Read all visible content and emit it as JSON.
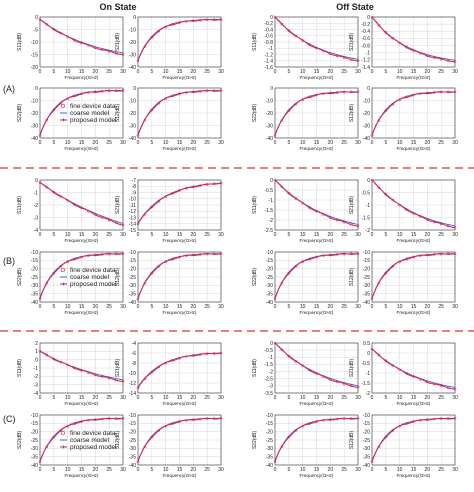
{
  "state_titles": [
    "On State",
    "Off State"
  ],
  "group_labels": [
    "(A)",
    "(B)",
    "(C)"
  ],
  "colors": {
    "fine": "#e8203a",
    "coarse": "#3a66d8",
    "proposed": "#c0247a",
    "divider": "#d83030",
    "grid": "#cccccc"
  },
  "chart_data": [
    {
      "type": "line",
      "group": "A",
      "state": "on",
      "param": "S11",
      "ylabel": "S11(dB)",
      "xlabel": "Frequency(GHz)",
      "xlim": [
        0,
        30
      ],
      "ylim": [
        -20,
        0
      ],
      "xticks": [
        0,
        5,
        10,
        15,
        20,
        25,
        30
      ],
      "yticks": [
        0,
        -5,
        -10,
        -15,
        -20
      ],
      "shape": "dec",
      "y0": -1,
      "y1": -15,
      "k": 1.4,
      "series": [
        {
          "name": "fine device data"
        },
        {
          "name": "coarse model"
        },
        {
          "name": "proposed model"
        }
      ]
    },
    {
      "type": "line",
      "group": "A",
      "state": "on",
      "param": "S21",
      "ylabel": "S21(dB)",
      "xlabel": "Frequency(GHz)",
      "xlim": [
        0,
        30
      ],
      "ylim": [
        -40,
        0
      ],
      "xticks": [
        0,
        5,
        10,
        15,
        20,
        25,
        30
      ],
      "yticks": [
        0,
        -10,
        -20,
        -30,
        -40
      ],
      "shape": "rise",
      "y0": -35,
      "y1": -2,
      "k": 5
    },
    {
      "type": "line",
      "group": "A",
      "state": "off",
      "param": "S11",
      "ylabel": "S11(dB)",
      "xlabel": "Frequency(GHz)",
      "xlim": [
        0,
        30
      ],
      "ylim": [
        -1.6,
        0
      ],
      "xticks": [
        0,
        5,
        10,
        15,
        20,
        25,
        30
      ],
      "yticks": [
        0,
        -0.2,
        -0.4,
        -0.6,
        -0.8,
        -1.0,
        -1.2,
        -1.4,
        -1.6
      ],
      "shape": "dec",
      "y0": 0,
      "y1": -1.4,
      "k": 1.8
    },
    {
      "type": "line",
      "group": "A",
      "state": "off",
      "param": "S21",
      "ylabel": "S21(dB)",
      "xlabel": "Frequency(GHz)",
      "xlim": [
        0,
        30
      ],
      "ylim": [
        -1.4,
        0
      ],
      "xticks": [
        0,
        5,
        10,
        15,
        20,
        25,
        30
      ],
      "yticks": [
        0,
        -0.2,
        -0.4,
        -0.6,
        -0.8,
        -1.0,
        -1.2,
        -1.4
      ],
      "shape": "dec",
      "y0": 0,
      "y1": -1.25,
      "k": 2.2
    },
    {
      "type": "line",
      "group": "A",
      "state": "on",
      "param": "S22",
      "ylabel": "S22(dB)",
      "xlabel": "Frequency(GHz)",
      "xlim": [
        0,
        30
      ],
      "ylim": [
        -40,
        0
      ],
      "xticks": [
        0,
        5,
        10,
        15,
        20,
        25,
        30
      ],
      "yticks": [
        0,
        -10,
        -20,
        -30,
        -40
      ],
      "shape": "rise",
      "y0": -38,
      "y1": -2,
      "k": 5,
      "legend": true
    },
    {
      "type": "line",
      "group": "A",
      "state": "on",
      "param": "S12",
      "ylabel": "S12(dB)",
      "xlabel": "Frequency(GHz)",
      "xlim": [
        0,
        30
      ],
      "ylim": [
        -40,
        0
      ],
      "xticks": [
        0,
        5,
        10,
        15,
        20,
        25,
        30
      ],
      "yticks": [
        0,
        -10,
        -20,
        -30,
        -40
      ],
      "shape": "rise",
      "y0": -38,
      "y1": -2,
      "k": 5
    },
    {
      "type": "line",
      "group": "A",
      "state": "off",
      "param": "S22",
      "ylabel": "S22(dB)",
      "xlabel": "Frequency(GHz)",
      "xlim": [
        0,
        30
      ],
      "ylim": [
        -40,
        0
      ],
      "xticks": [
        0,
        5,
        10,
        15,
        20,
        25,
        30
      ],
      "yticks": [
        0,
        -10,
        -20,
        -30,
        -40
      ],
      "shape": "rise",
      "y0": -38,
      "y1": -3,
      "k": 5
    },
    {
      "type": "line",
      "group": "A",
      "state": "off",
      "param": "S12",
      "ylabel": "S12(dB)",
      "xlabel": "Frequency(GHz)",
      "xlim": [
        0,
        30
      ],
      "ylim": [
        -40,
        0
      ],
      "xticks": [
        0,
        5,
        10,
        15,
        20,
        25,
        30
      ],
      "yticks": [
        0,
        -10,
        -20,
        -30,
        -40
      ],
      "shape": "rise",
      "y0": -38,
      "y1": -3,
      "k": 5
    },
    {
      "type": "line",
      "group": "B",
      "state": "on",
      "param": "S11",
      "ylabel": "S11(dB)",
      "xlabel": "Frequency(GHz)",
      "xlim": [
        0,
        30
      ],
      "ylim": [
        -4,
        0
      ],
      "xticks": [
        0,
        5,
        10,
        15,
        20,
        25,
        30
      ],
      "yticks": [
        0,
        -1,
        -2,
        -3,
        -4
      ],
      "shape": "dec",
      "y0": -0.2,
      "y1": -3.6,
      "k": 0.8
    },
    {
      "type": "line",
      "group": "B",
      "state": "on",
      "param": "S21",
      "ylabel": "S21(dB)",
      "xlabel": "Frequency(GHz)",
      "xlim": [
        0,
        30
      ],
      "ylim": [
        -15,
        -7
      ],
      "xticks": [
        0,
        5,
        10,
        15,
        20,
        25,
        30
      ],
      "yticks": [
        -7,
        -8,
        -9,
        -10,
        -11,
        -12,
        -13,
        -14,
        -15
      ],
      "shape": "rise",
      "y0": -14,
      "y1": -7.5,
      "k": 3
    },
    {
      "type": "line",
      "group": "B",
      "state": "off",
      "param": "S11",
      "ylabel": "S11(dB)",
      "xlabel": "Frequency(GHz)",
      "xlim": [
        0,
        30
      ],
      "ylim": [
        -2.5,
        0
      ],
      "xticks": [
        0,
        5,
        10,
        15,
        20,
        25,
        30
      ],
      "yticks": [
        0,
        -0.5,
        -1.0,
        -1.5,
        -2.0,
        -2.5
      ],
      "shape": "dec",
      "y0": 0,
      "y1": -2.3,
      "k": 1.5
    },
    {
      "type": "line",
      "group": "B",
      "state": "off",
      "param": "S21",
      "ylabel": "S21(dB)",
      "xlabel": "Frequency(GHz)",
      "xlim": [
        0,
        30
      ],
      "ylim": [
        -2,
        0
      ],
      "xticks": [
        0,
        5,
        10,
        15,
        20,
        25,
        30
      ],
      "yticks": [
        0,
        -0.5,
        -1.0,
        -1.5,
        -2.0
      ],
      "shape": "dec",
      "y0": 0,
      "y1": -1.9,
      "k": 1.7
    },
    {
      "type": "line",
      "group": "B",
      "state": "on",
      "param": "S22",
      "ylabel": "S22(dB)",
      "xlabel": "Frequency(GHz)",
      "xlim": [
        0,
        30
      ],
      "ylim": [
        -40,
        -10
      ],
      "xticks": [
        0,
        5,
        10,
        15,
        20,
        25,
        30
      ],
      "yticks": [
        -10,
        -15,
        -20,
        -25,
        -30,
        -35,
        -40
      ],
      "shape": "rise",
      "y0": -38,
      "y1": -11,
      "k": 5,
      "legend": true
    },
    {
      "type": "line",
      "group": "B",
      "state": "on",
      "param": "S12",
      "ylabel": "S12(dB)",
      "xlabel": "Frequency(GHz)",
      "xlim": [
        0,
        30
      ],
      "ylim": [
        -40,
        -10
      ],
      "xticks": [
        0,
        5,
        10,
        15,
        20,
        25,
        30
      ],
      "yticks": [
        -10,
        -15,
        -20,
        -25,
        -30,
        -35,
        -40
      ],
      "shape": "rise",
      "y0": -38,
      "y1": -11,
      "k": 5
    },
    {
      "type": "line",
      "group": "B",
      "state": "off",
      "param": "S22",
      "ylabel": "S22(dB)",
      "xlabel": "Frequency(GHz)",
      "xlim": [
        0,
        30
      ],
      "ylim": [
        -40,
        -10
      ],
      "xticks": [
        0,
        5,
        10,
        15,
        20,
        25,
        30
      ],
      "yticks": [
        -10,
        -15,
        -20,
        -25,
        -30,
        -35,
        -40
      ],
      "shape": "rise",
      "y0": -38,
      "y1": -11,
      "k": 5
    },
    {
      "type": "line",
      "group": "B",
      "state": "off",
      "param": "S12",
      "ylabel": "S12(dB)",
      "xlabel": "Frequency(GHz)",
      "xlim": [
        0,
        30
      ],
      "ylim": [
        -40,
        -10
      ],
      "xticks": [
        0,
        5,
        10,
        15,
        20,
        25,
        30
      ],
      "yticks": [
        -10,
        -15,
        -20,
        -25,
        -30,
        -35,
        -40
      ],
      "shape": "rise",
      "y0": -38,
      "y1": -11,
      "k": 5
    },
    {
      "type": "line",
      "group": "C",
      "state": "on",
      "param": "S11",
      "ylabel": "S11(dB)",
      "xlabel": "Frequency(GHz)",
      "xlim": [
        0,
        30
      ],
      "ylim": [
        -4,
        2
      ],
      "xticks": [
        0,
        5,
        10,
        15,
        20,
        25,
        30
      ],
      "yticks": [
        2,
        1,
        0,
        -1,
        -2,
        -3,
        -4
      ],
      "shape": "dec",
      "y0": 1,
      "y1": -2.6,
      "k": 1.1
    },
    {
      "type": "line",
      "group": "C",
      "state": "on",
      "param": "S21",
      "ylabel": "S21(dB)",
      "xlabel": "Frequency(GHz)",
      "xlim": [
        0,
        30
      ],
      "ylim": [
        -14,
        -4
      ],
      "xticks": [
        0,
        5,
        10,
        15,
        20,
        25,
        30
      ],
      "yticks": [
        -4,
        -6,
        -8,
        -10,
        -12,
        -14
      ],
      "shape": "rise",
      "y0": -13,
      "y1": -6,
      "k": 3.5
    },
    {
      "type": "line",
      "group": "C",
      "state": "off",
      "param": "S11",
      "ylabel": "S11(dB)",
      "xlabel": "Frequency(GHz)",
      "xlim": [
        0,
        30
      ],
      "ylim": [
        -3.5,
        0
      ],
      "xticks": [
        0,
        5,
        10,
        15,
        20,
        25,
        30
      ],
      "yticks": [
        0,
        -0.5,
        -1.0,
        -1.5,
        -2.0,
        -2.5,
        -3.0,
        -3.5
      ],
      "shape": "dec",
      "y0": 0,
      "y1": -3.1,
      "k": 1.6
    },
    {
      "type": "line",
      "group": "C",
      "state": "off",
      "param": "S21",
      "ylabel": "S21(dB)",
      "xlabel": "Frequency(GHz)",
      "xlim": [
        0,
        30
      ],
      "ylim": [
        -2,
        0.5
      ],
      "xticks": [
        0,
        5,
        10,
        15,
        20,
        25,
        30
      ],
      "yticks": [
        0.5,
        0,
        -0.5,
        -1.0,
        -1.5,
        -2.0
      ],
      "shape": "dec",
      "y0": 0.2,
      "y1": -1.8,
      "k": 1.6
    },
    {
      "type": "line",
      "group": "C",
      "state": "on",
      "param": "S22",
      "ylabel": "S22(dB)",
      "xlabel": "Frequency(GHz)",
      "xlim": [
        0,
        30
      ],
      "ylim": [
        -40,
        -10
      ],
      "xticks": [
        0,
        5,
        10,
        15,
        20,
        25,
        30
      ],
      "yticks": [
        -10,
        -15,
        -20,
        -25,
        -30,
        -35,
        -40
      ],
      "shape": "rise",
      "y0": -38,
      "y1": -12,
      "k": 5,
      "legend": true
    },
    {
      "type": "line",
      "group": "C",
      "state": "on",
      "param": "S12",
      "ylabel": "S12(dB)",
      "xlabel": "Frequency(GHz)",
      "xlim": [
        0,
        30
      ],
      "ylim": [
        -40,
        -10
      ],
      "xticks": [
        0,
        5,
        10,
        15,
        20,
        25,
        30
      ],
      "yticks": [
        -10,
        -15,
        -20,
        -25,
        -30,
        -35,
        -40
      ],
      "shape": "rise",
      "y0": -38,
      "y1": -12,
      "k": 5
    },
    {
      "type": "line",
      "group": "C",
      "state": "off",
      "param": "S22",
      "ylabel": "S22(dB)",
      "xlabel": "Frequency(GHz)",
      "xlim": [
        0,
        30
      ],
      "ylim": [
        -40,
        -10
      ],
      "xticks": [
        0,
        5,
        10,
        15,
        20,
        25,
        30
      ],
      "yticks": [
        -10,
        -15,
        -20,
        -25,
        -30,
        -35,
        -40
      ],
      "shape": "rise",
      "y0": -38,
      "y1": -12,
      "k": 5
    },
    {
      "type": "line",
      "group": "C",
      "state": "off",
      "param": "S12",
      "ylabel": "S12(dB)",
      "xlabel": "Frequency(GHz)",
      "xlim": [
        0,
        30
      ],
      "ylim": [
        -40,
        -10
      ],
      "xticks": [
        0,
        5,
        10,
        15,
        20,
        25,
        30
      ],
      "yticks": [
        -10,
        -15,
        -20,
        -25,
        -30,
        -35,
        -40
      ],
      "shape": "rise",
      "y0": -38,
      "y1": -12,
      "k": 5
    }
  ],
  "legend": [
    "fine device data",
    "coarse model",
    "proposed model"
  ]
}
